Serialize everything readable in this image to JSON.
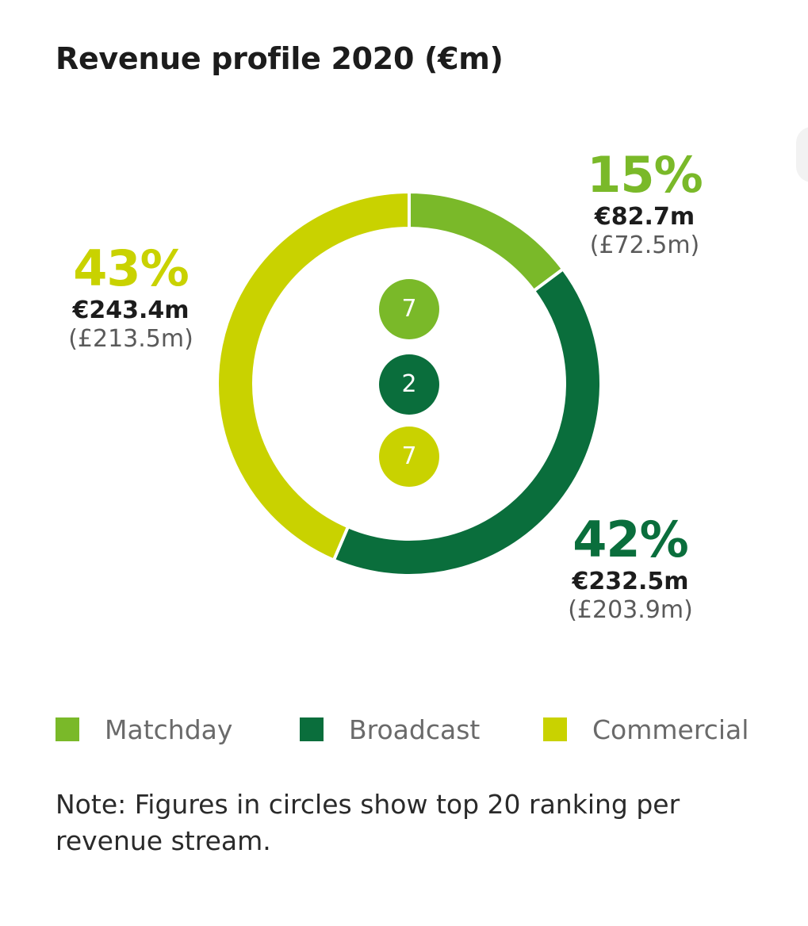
{
  "title": "Revenue profile 2020 (€m)",
  "chart_data": {
    "type": "pie",
    "title": "Revenue profile 2020 (€m)",
    "slices": [
      {
        "name": "Matchday",
        "value": 82.7,
        "percent_label": "15%",
        "eur_label": "€82.7m",
        "gbp_label": "(£72.5m)",
        "rank": "7",
        "color": "#7ab929"
      },
      {
        "name": "Broadcast",
        "value": 232.5,
        "percent_label": "42%",
        "eur_label": "€232.5m",
        "gbp_label": "(£203.9m)",
        "rank": "2",
        "color": "#0a6e3c"
      },
      {
        "name": "Commercial",
        "value": 243.4,
        "percent_label": "43%",
        "eur_label": "€243.4m",
        "gbp_label": "(£213.5m)",
        "rank": "7",
        "color": "#c9d200"
      }
    ],
    "legend_position": "bottom"
  },
  "note": "Note: Figures in circles show top 20 ranking per revenue stream."
}
